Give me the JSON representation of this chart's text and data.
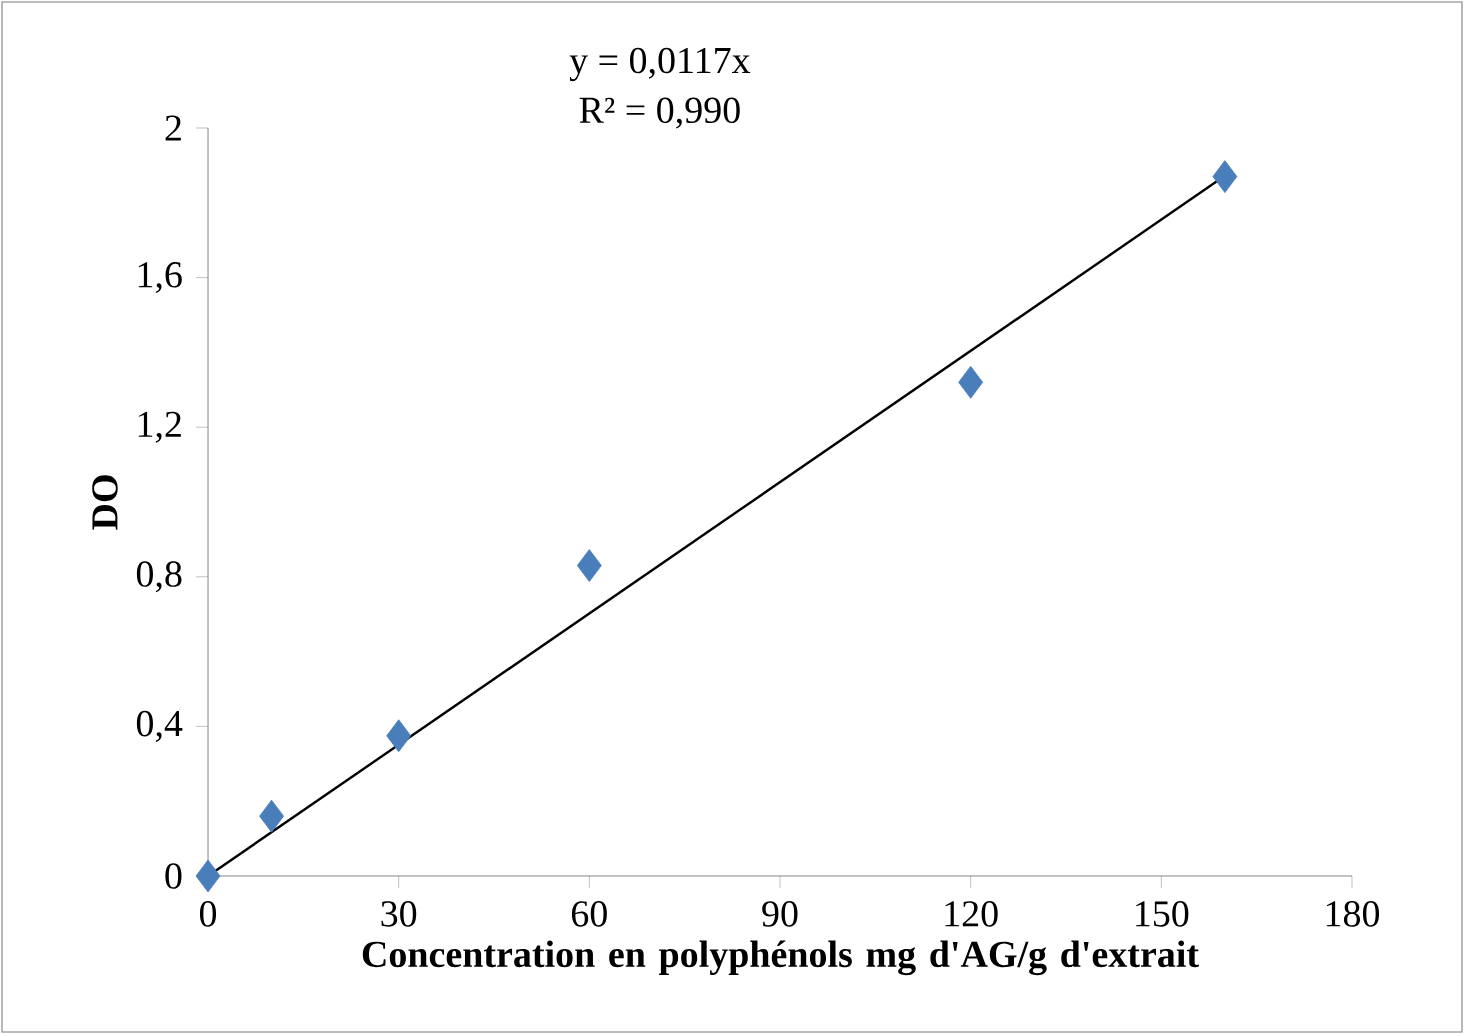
{
  "chart_data": {
    "type": "scatter",
    "xlabel": "Concentration en polyphénols mg d'AG/g d'extrait",
    "ylabel": "DO",
    "annotations": [
      "y = 0,0117x",
      "R² = 0,990"
    ],
    "series": [
      {
        "color": "#4a7ebb",
        "marker": "diamond",
        "x": [
          0,
          10,
          30,
          60,
          120,
          160
        ],
        "values": [
          0,
          0.16,
          0.375,
          0.83,
          1.32,
          1.87
        ]
      },
      {
        "type": "line",
        "color": "#000000",
        "line_style": "solid",
        "x": [
          0,
          160
        ],
        "values": [
          0,
          1.872
        ]
      }
    ],
    "xlim": [
      0,
      180
    ],
    "ylim": [
      0,
      2
    ],
    "xticks": [
      0,
      30,
      60,
      90,
      120,
      150,
      180
    ],
    "yticks": [
      {
        "value": 0,
        "label": "0"
      },
      {
        "value": 0.4,
        "label": "0,4"
      },
      {
        "value": 0.8,
        "label": "0,8"
      },
      {
        "value": 1.2,
        "label": "1,2"
      },
      {
        "value": 1.6,
        "label": "1,6"
      },
      {
        "value": 2,
        "label": "2"
      }
    ],
    "grid": false
  }
}
